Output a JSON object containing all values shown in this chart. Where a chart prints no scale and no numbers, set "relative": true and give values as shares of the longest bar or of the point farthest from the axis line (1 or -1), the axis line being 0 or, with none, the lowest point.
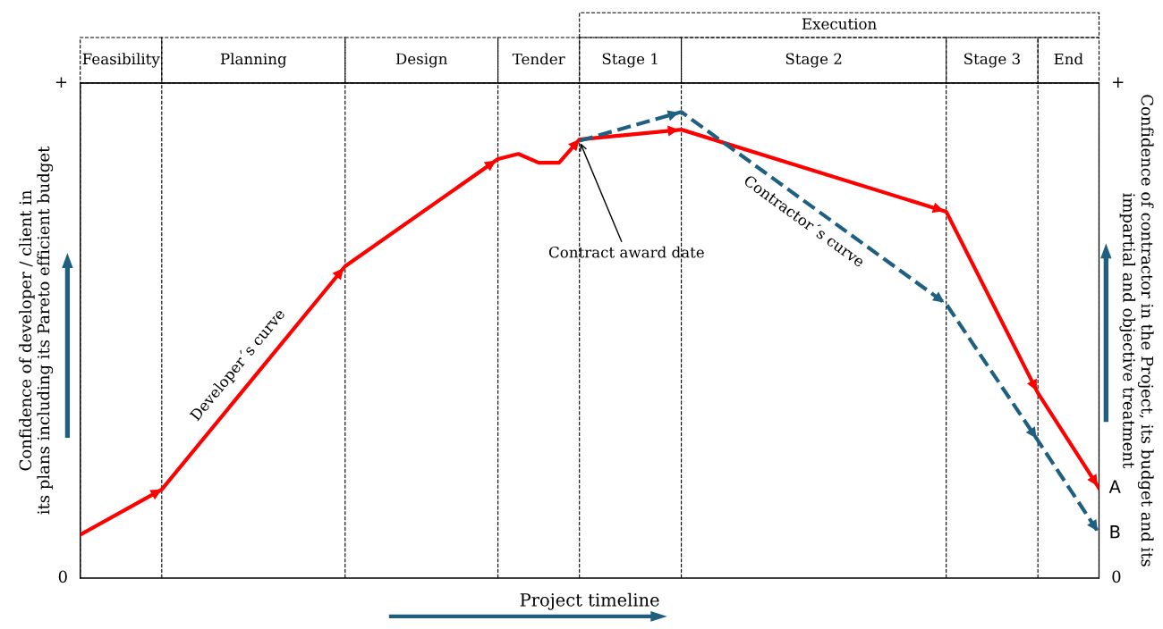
{
  "chart_data": {
    "type": "line",
    "relative": true,
    "xlabel": "Project timeline",
    "ylabel": "Confidence of developer / client in\nits plans including its Pareto efficient budget",
    "y2label": "Confidence of contractor in the Project, its budget and its\nimpartial and objective treatment",
    "tick_labels": false,
    "categories": [
      null,
      null,
      null,
      null,
      null,
      null,
      null,
      null,
      null,
      null,
      null,
      null,
      null,
      null,
      null,
      null,
      null,
      null,
      null,
      null,
      null,
      null,
      null,
      null,
      null,
      null,
      null,
      null,
      null,
      null,
      null,
      null,
      null,
      null,
      null,
      null,
      null,
      null,
      null,
      null,
      null,
      null,
      null,
      null,
      null,
      null,
      null,
      null,
      null,
      null,
      null,
      null,
      null,
      null,
      null,
      null,
      null,
      null,
      null,
      null,
      null,
      null,
      null,
      null,
      null,
      null,
      null,
      null,
      null,
      null,
      null,
      null,
      null,
      null,
      null,
      null,
      null,
      null,
      null,
      null,
      null,
      null,
      null,
      null,
      null,
      null,
      null,
      null,
      null,
      null,
      null,
      null,
      null,
      null,
      null,
      null,
      null,
      null,
      null,
      null,
      null
    ],
    "series": [
      {
        "name": "Developer´s curve",
        "color": "#ff0000",
        "line_style": "solid",
        "values": [
          0.093,
          null,
          null,
          null,
          null,
          null,
          null,
          null,
          0.19,
          null,
          null,
          null,
          null,
          null,
          null,
          null,
          null,
          null,
          null,
          null,
          null,
          null,
          null,
          null,
          null,
          null,
          0.669,
          null,
          null,
          null,
          null,
          null,
          null,
          null,
          null,
          null,
          null,
          null,
          null,
          null,
          null,
          0.899,
          null,
          0.91,
          null,
          0.891,
          null,
          0.891,
          null,
          0.941,
          null,
          null,
          null,
          null,
          null,
          null,
          null,
          null,
          null,
          0.962,
          null,
          null,
          null,
          null,
          null,
          null,
          null,
          null,
          null,
          null,
          null,
          null,
          null,
          null,
          null,
          null,
          null,
          null,
          null,
          null,
          null,
          null,
          null,
          null,
          null,
          0.786,
          null,
          null,
          null,
          null,
          null,
          null,
          null,
          null,
          0.397,
          null,
          null,
          null,
          null,
          null,
          0.193
        ]
      },
      {
        "name": "Contractor´s curve",
        "color": "#1f5f7f",
        "line_style": "dashed",
        "values": [
          null,
          null,
          null,
          null,
          null,
          null,
          null,
          null,
          null,
          null,
          null,
          null,
          null,
          null,
          null,
          null,
          null,
          null,
          null,
          null,
          null,
          null,
          null,
          null,
          null,
          null,
          null,
          null,
          null,
          null,
          null,
          null,
          null,
          null,
          null,
          null,
          null,
          null,
          null,
          null,
          null,
          null,
          null,
          null,
          null,
          null,
          null,
          null,
          null,
          0.938,
          null,
          null,
          null,
          null,
          null,
          null,
          null,
          null,
          null,
          1,
          null,
          null,
          null,
          null,
          null,
          null,
          null,
          null,
          null,
          null,
          null,
          null,
          null,
          null,
          null,
          null,
          null,
          null,
          null,
          null,
          null,
          null,
          null,
          null,
          null,
          0.588,
          null,
          null,
          null,
          null,
          null,
          null,
          null,
          null,
          0.295,
          null,
          null,
          null,
          null,
          null,
          0.096
        ]
      }
    ],
    "grid": "x",
    "annotations": [
      "Contract award date",
      "A",
      "B",
      "Feasibility",
      "Planning",
      "Design",
      "Tender",
      "Stage 1",
      "Stage 2",
      "Stage 3",
      "End",
      "Execution",
      "+",
      "0"
    ]
  }
}
